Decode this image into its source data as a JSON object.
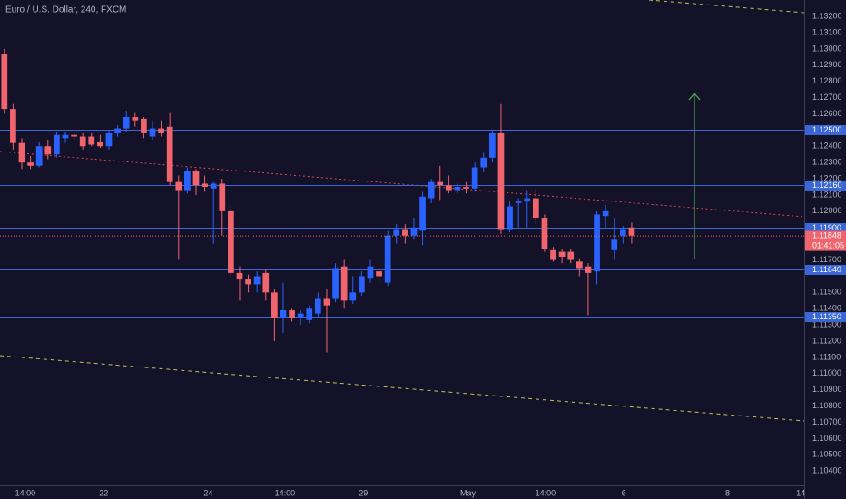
{
  "chart_data": {
    "type": "candlestick",
    "title": "Euro / U.S. Dollar, 240, FXCM",
    "up_color": "#2962ff",
    "down_color": "#f0646e",
    "level_color": "#3a66d6",
    "grid": false,
    "x": [
      0,
      1,
      2,
      3,
      4,
      5,
      6,
      7,
      8,
      9,
      10,
      11,
      12,
      13,
      14,
      15,
      16,
      17,
      18,
      19,
      20,
      21,
      22,
      23,
      24,
      25,
      26,
      27,
      28,
      29,
      30,
      31,
      32,
      33,
      34,
      35,
      36,
      37,
      38,
      39,
      40,
      41,
      42,
      43,
      44,
      45,
      46,
      47,
      48,
      49,
      50,
      51,
      52,
      53,
      54,
      55,
      56,
      57,
      58,
      59,
      60,
      61,
      62,
      63,
      64,
      65,
      66,
      67,
      68,
      69,
      70,
      71,
      72
    ],
    "open": [
      1.1297,
      1.1263,
      1.1242,
      1.123,
      1.1228,
      1.124,
      1.1235,
      1.1245,
      1.1247,
      1.1246,
      1.1246,
      1.1243,
      1.124,
      1.1248,
      1.1251,
      1.1258,
      1.1257,
      1.1246,
      1.1251,
      1.1252,
      1.1218,
      1.1213,
      1.1225,
      1.1217,
      1.1214,
      1.1217,
      1.12,
      1.1162,
      1.1158,
      1.1155,
      1.1162,
      1.115,
      1.1134,
      1.1139,
      1.1134,
      1.1133,
      1.1137,
      1.1146,
      1.1146,
      1.1166,
      1.1145,
      1.115,
      1.1159,
      1.1163,
      1.1156,
      1.1185,
      1.1189,
      1.1185,
      1.1188,
      1.1208,
      1.1218,
      1.1216,
      1.1213,
      1.1215,
      1.1214,
      1.1227,
      1.1233,
      1.1248,
      1.1189,
      1.1205,
      1.1206,
      1.1208,
      1.1196,
      1.1176,
      1.1175,
      1.1175,
      1.1169,
      1.1166,
      1.1163,
      1.1197,
      1.1176,
      1.1185,
      1.119
    ],
    "high": [
      1.13,
      1.1266,
      1.1245,
      1.1234,
      1.1243,
      1.1244,
      1.1249,
      1.1249,
      1.1249,
      1.1248,
      1.1248,
      1.1247,
      1.125,
      1.1253,
      1.1262,
      1.1261,
      1.1258,
      1.1256,
      1.1256,
      1.1261,
      1.1222,
      1.1227,
      1.1226,
      1.1222,
      1.1218,
      1.122,
      1.1203,
      1.1166,
      1.1161,
      1.1163,
      1.1164,
      1.1152,
      1.1156,
      1.114,
      1.1139,
      1.1142,
      1.115,
      1.1152,
      1.1168,
      1.117,
      1.116,
      1.1163,
      1.117,
      1.1166,
      1.1188,
      1.1192,
      1.1192,
      1.1196,
      1.1212,
      1.122,
      1.1228,
      1.1222,
      1.1217,
      1.1218,
      1.123,
      1.1236,
      1.125,
      1.1266,
      1.1206,
      1.1208,
      1.1213,
      1.1214,
      1.1198,
      1.1178,
      1.1177,
      1.1177,
      1.1171,
      1.1168,
      1.12,
      1.1204,
      1.1196,
      1.1191,
      1.1193
    ],
    "low": [
      1.126,
      1.1238,
      1.1226,
      1.1226,
      1.1227,
      1.1232,
      1.1233,
      1.1242,
      1.1244,
      1.1238,
      1.124,
      1.1239,
      1.1238,
      1.1246,
      1.1249,
      1.1252,
      1.1245,
      1.1244,
      1.1246,
      1.1216,
      1.117,
      1.1211,
      1.121,
      1.1212,
      1.118,
      1.1185,
      1.116,
      1.1145,
      1.115,
      1.115,
      1.1145,
      1.112,
      1.1125,
      1.1132,
      1.113,
      1.1131,
      1.1135,
      1.1113,
      1.1144,
      1.114,
      1.1143,
      1.1148,
      1.1156,
      1.1155,
      1.1154,
      1.118,
      1.118,
      1.1183,
      1.1179,
      1.1205,
      1.1207,
      1.1211,
      1.1211,
      1.1211,
      1.1212,
      1.1224,
      1.123,
      1.1186,
      1.1187,
      1.119,
      1.119,
      1.1192,
      1.1175,
      1.1169,
      1.1168,
      1.1168,
      1.116,
      1.1136,
      1.1155,
      1.119,
      1.117,
      1.118,
      1.118
    ],
    "close": [
      1.1263,
      1.1242,
      1.123,
      1.1228,
      1.124,
      1.1235,
      1.1247,
      1.1247,
      1.1246,
      1.124,
      1.1241,
      1.124,
      1.1248,
      1.1251,
      1.1258,
      1.1256,
      1.1248,
      1.1251,
      1.1248,
      1.1218,
      1.1213,
      1.1225,
      1.1216,
      1.1215,
      1.1217,
      1.12,
      1.1162,
      1.1158,
      1.1155,
      1.116,
      1.115,
      1.1134,
      1.1139,
      1.1134,
      1.1137,
      1.114,
      1.1146,
      1.1142,
      1.1165,
      1.1145,
      1.115,
      1.116,
      1.1166,
      1.116,
      1.1185,
      1.1189,
      1.1185,
      1.119,
      1.1209,
      1.1218,
      1.1216,
      1.1213,
      1.1215,
      1.1214,
      1.1227,
      1.1233,
      1.1248,
      1.1189,
      1.1203,
      1.1206,
      1.1208,
      1.1196,
      1.1177,
      1.117,
      1.1172,
      1.117,
      1.1165,
      1.1162,
      1.1198,
      1.12,
      1.1183,
      1.1189,
      1.1185
    ],
    "xlim": [
      -0.5,
      91.8
    ],
    "ylim": [
      1.10312,
      1.13301
    ],
    "xticks": [
      {
        "value": 2.4,
        "label": "14:00"
      },
      {
        "value": 11.4,
        "label": "22"
      },
      {
        "value": 23.4,
        "label": "24"
      },
      {
        "value": 32.2,
        "label": "14:00"
      },
      {
        "value": 41.2,
        "label": "29"
      },
      {
        "value": 53.2,
        "label": "May"
      },
      {
        "value": 62.1,
        "label": "14:00"
      },
      {
        "value": 71.1,
        "label": "6"
      },
      {
        "value": 83.0,
        "label": "8"
      },
      {
        "value": 91.4,
        "label": "14"
      }
    ],
    "yticks": [
      {
        "value": 1.132,
        "label": "1.13200"
      },
      {
        "value": 1.131,
        "label": "1.13100"
      },
      {
        "value": 1.13,
        "label": "1.13000"
      },
      {
        "value": 1.129,
        "label": "1.12900"
      },
      {
        "value": 1.128,
        "label": "1.12800"
      },
      {
        "value": 1.127,
        "label": "1.12700"
      },
      {
        "value": 1.126,
        "label": "1.12600"
      },
      {
        "value": 1.124,
        "label": "1.12400"
      },
      {
        "value": 1.123,
        "label": "1.12300"
      },
      {
        "value": 1.122,
        "label": "1.12200"
      },
      {
        "value": 1.121,
        "label": "1.12100"
      },
      {
        "value": 1.12,
        "label": "1.12000"
      },
      {
        "value": 1.117,
        "label": "1.11700"
      },
      {
        "value": 1.115,
        "label": "1.11500"
      },
      {
        "value": 1.114,
        "label": "1.11400"
      },
      {
        "value": 1.113,
        "label": "1.11300"
      },
      {
        "value": 1.112,
        "label": "1.11200"
      },
      {
        "value": 1.111,
        "label": "1.11100"
      },
      {
        "value": 1.11,
        "label": "1.11000"
      },
      {
        "value": 1.109,
        "label": "1.10900"
      },
      {
        "value": 1.108,
        "label": "1.10800"
      },
      {
        "value": 1.107,
        "label": "1.10700"
      },
      {
        "value": 1.106,
        "label": "1.10600"
      },
      {
        "value": 1.105,
        "label": "1.10500"
      },
      {
        "value": 1.104,
        "label": "1.10400"
      }
    ],
    "levels": [
      {
        "value": 1.125,
        "label": "1.12500"
      },
      {
        "value": 1.1216,
        "label": "1.12160"
      },
      {
        "value": 1.119,
        "label": "1.11900"
      },
      {
        "value": 1.1164,
        "label": "1.11640"
      },
      {
        "value": 1.1135,
        "label": "1.11350"
      }
    ],
    "last_price": {
      "value": 1.11848,
      "label": "1.11848"
    },
    "countdown": "01:41:05"
  }
}
